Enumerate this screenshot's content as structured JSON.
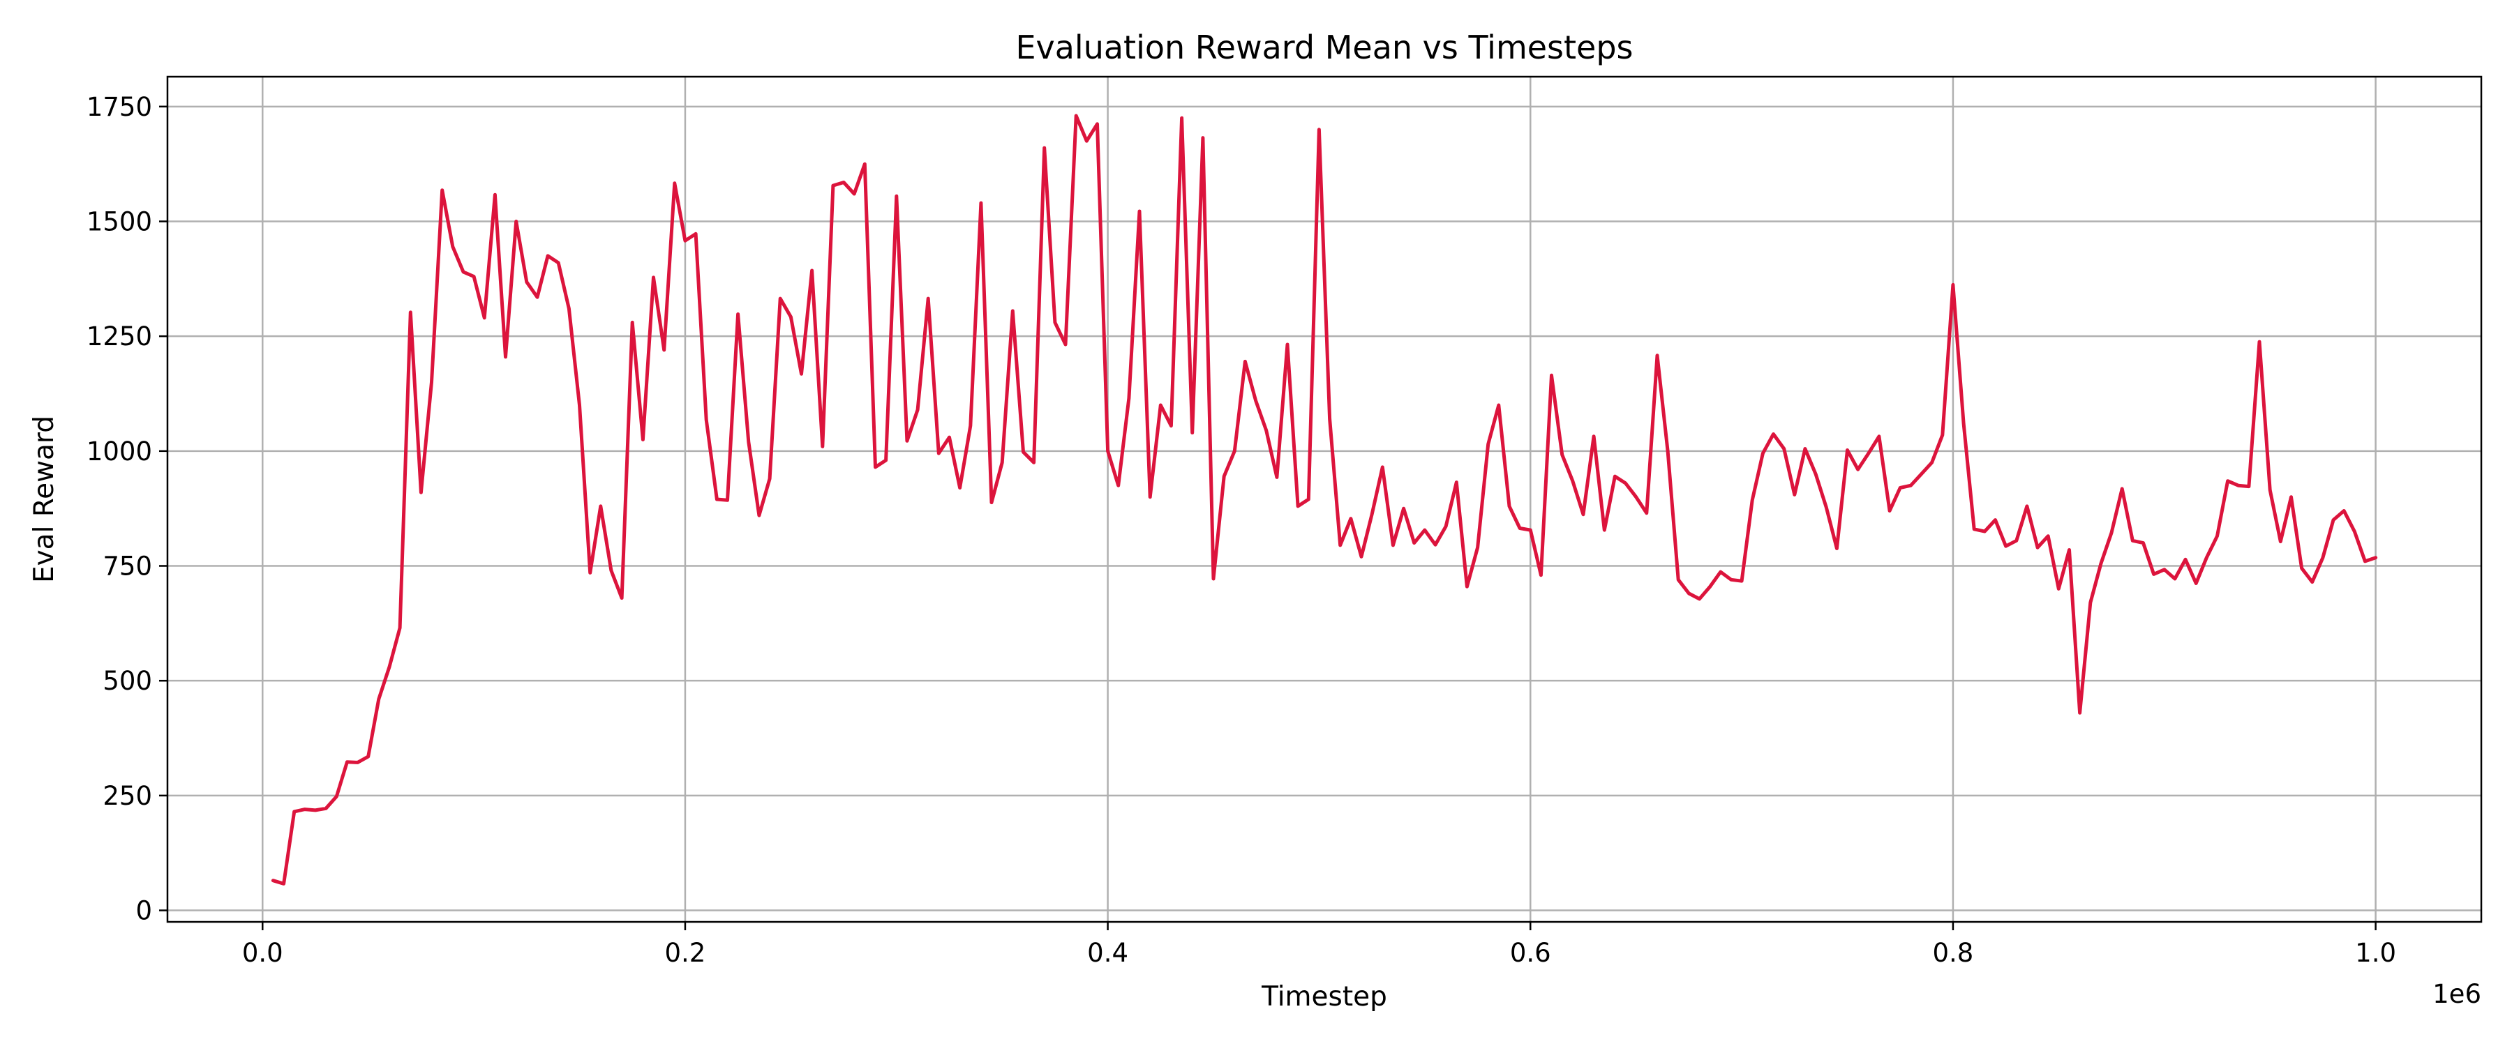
{
  "chart_data": {
    "type": "line",
    "title": "Evaluation Reward Mean vs Timesteps",
    "xlabel": "Timestep",
    "ylabel": "Eval Reward",
    "x_multiplier_label": "1e6",
    "xlim": [
      -45000,
      1050000
    ],
    "ylim": [
      -25,
      1815
    ],
    "x_ticks": [
      0,
      200000,
      400000,
      600000,
      800000,
      1000000
    ],
    "x_tick_labels": [
      "0.0",
      "0.2",
      "0.4",
      "0.6",
      "0.8",
      "1.0"
    ],
    "y_ticks": [
      0,
      250,
      500,
      750,
      1000,
      1250,
      1500,
      1750
    ],
    "y_tick_labels": [
      "0",
      "250",
      "500",
      "750",
      "1000",
      "1250",
      "1500",
      "1750"
    ],
    "grid": true,
    "series": [
      {
        "color": "#dc143c",
        "x_start": 5000,
        "x_step": 5000,
        "values": [
          65,
          58,
          215,
          220,
          218,
          222,
          248,
          323,
          322,
          335,
          460,
          530,
          615,
          1302,
          910,
          1150,
          1568,
          1445,
          1390,
          1380,
          1290,
          1558,
          1205,
          1500,
          1368,
          1335,
          1425,
          1410,
          1310,
          1100,
          735,
          880,
          740,
          680,
          1280,
          1025,
          1378,
          1220,
          1583,
          1458,
          1473,
          1068,
          895,
          893,
          1298,
          1020,
          860,
          940,
          1332,
          1292,
          1168,
          1393,
          1010,
          1578,
          1585,
          1560,
          1625,
          965,
          980,
          1555,
          1022,
          1090,
          1332,
          995,
          1030,
          920,
          1055,
          1540,
          888,
          975,
          1305,
          998,
          975,
          1660,
          1280,
          1232,
          1730,
          1675,
          1712,
          1000,
          925,
          1115,
          1522,
          900,
          1100,
          1055,
          1725,
          1040,
          1682,
          722,
          945,
          1000,
          1195,
          1110,
          1045,
          943,
          1232,
          880,
          895,
          1700,
          1070,
          795,
          853,
          770,
          862,
          965,
          795,
          875,
          800,
          828,
          796,
          836,
          932,
          705,
          790,
          1015,
          1100,
          880,
          832,
          828,
          730,
          1165,
          992,
          935,
          862,
          1032,
          828,
          945,
          930,
          900,
          865,
          1208,
          1000,
          720,
          690,
          678,
          705,
          737,
          720,
          717,
          893,
          995,
          1037,
          1005,
          905,
          1005,
          950,
          878,
          788,
          1002,
          960,
          995,
          1032,
          870,
          920,
          925,
          950,
          975,
          1035,
          1362,
          1060,
          830,
          825,
          850,
          793,
          805,
          880,
          790,
          815,
          700,
          785,
          430,
          670,
          755,
          822,
          918,
          805,
          800,
          732,
          742,
          722,
          764,
          712,
          768,
          815,
          935,
          925,
          923,
          1238,
          915,
          803,
          900,
          745,
          715,
          768,
          850,
          870,
          825,
          760,
          768
        ]
      }
    ]
  }
}
